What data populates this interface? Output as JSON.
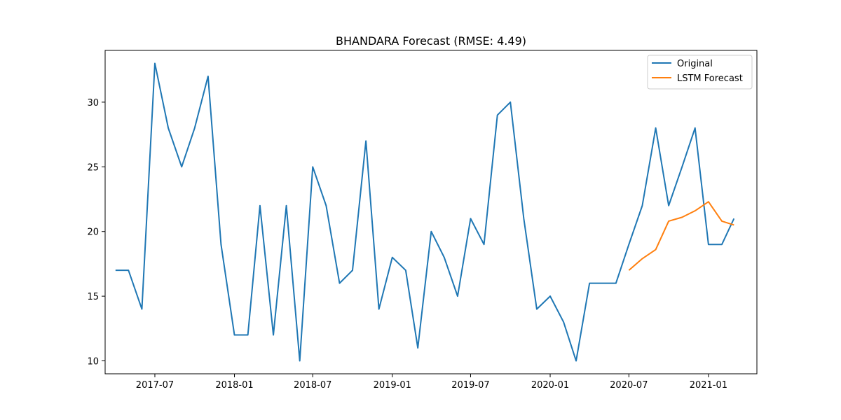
{
  "chart_data": {
    "type": "line",
    "title": "BHANDARA Forecast (RMSE: 4.49)",
    "xlabel": "",
    "ylabel": "",
    "xlim": [
      "2017-03-08",
      "2021-04-23"
    ],
    "ylim": [
      9.0,
      34.0
    ],
    "x_ticks": [
      "2017-07",
      "2018-01",
      "2018-07",
      "2019-01",
      "2019-07",
      "2020-01",
      "2020-07",
      "2021-01"
    ],
    "y_ticks": [
      10,
      15,
      20,
      25,
      30
    ],
    "grid": false,
    "legend_position": "top-right",
    "series": [
      {
        "name": "Original",
        "color": "#1f77b4",
        "x": [
          "2017-04",
          "2017-05",
          "2017-06",
          "2017-07",
          "2017-08",
          "2017-09",
          "2017-10",
          "2017-11",
          "2017-12",
          "2018-01",
          "2018-02",
          "2018-03",
          "2018-04",
          "2018-05",
          "2018-06",
          "2018-07",
          "2018-08",
          "2018-09",
          "2018-10",
          "2018-11",
          "2018-12",
          "2019-01",
          "2019-02",
          "2019-03",
          "2019-04",
          "2019-05",
          "2019-06",
          "2019-07",
          "2019-08",
          "2019-09",
          "2019-10",
          "2019-11",
          "2019-12",
          "2020-01",
          "2020-02",
          "2020-03",
          "2020-04",
          "2020-05",
          "2020-06",
          "2020-07",
          "2020-08",
          "2020-09",
          "2020-10",
          "2020-11",
          "2020-12",
          "2021-01",
          "2021-02",
          "2021-03"
        ],
        "values": [
          17,
          17,
          14,
          33,
          28,
          25,
          28,
          32,
          19,
          12,
          12,
          22,
          12,
          22,
          10,
          25,
          22,
          16,
          17,
          27,
          14,
          18,
          17,
          11,
          20,
          18,
          15,
          21,
          19,
          29,
          30,
          21,
          14,
          15,
          13,
          10,
          16,
          16,
          16,
          19,
          22,
          28,
          22,
          25,
          28,
          19,
          19,
          21
        ]
      },
      {
        "name": "LSTM Forecast",
        "color": "#ff7f0e",
        "x": [
          "2020-07",
          "2020-08",
          "2020-09",
          "2020-10",
          "2020-11",
          "2020-12",
          "2021-01",
          "2021-02",
          "2021-03"
        ],
        "values": [
          17.0,
          17.9,
          18.6,
          20.8,
          21.1,
          21.6,
          22.3,
          20.8,
          20.5
        ]
      }
    ]
  }
}
